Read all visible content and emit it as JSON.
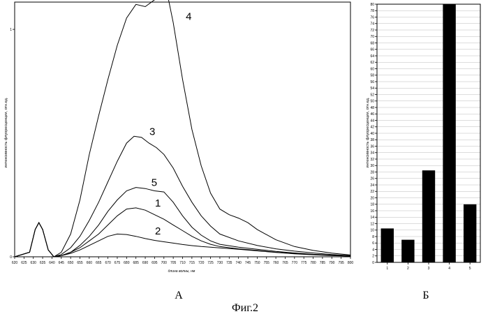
{
  "figure_caption": "Фиг.2",
  "chart_data": [
    {
      "type": "line",
      "panel_label": "А",
      "xlabel": "длина волны, нм",
      "ylabel": "интенсивность флуоресценции, отн.ед.",
      "xlim": [
        620,
        800
      ],
      "ylim": [
        0,
        1.12
      ],
      "x_ticks": [
        620,
        625,
        630,
        635,
        640,
        645,
        650,
        655,
        660,
        665,
        670,
        675,
        680,
        685,
        690,
        695,
        700,
        705,
        710,
        715,
        720,
        725,
        730,
        735,
        740,
        745,
        750,
        755,
        760,
        765,
        770,
        775,
        780,
        785,
        790,
        795,
        800
      ],
      "y_tick_labels": [
        "0",
        "1"
      ],
      "series": [
        {
          "name": "1",
          "points": [
            [
              620,
              0
            ],
            [
              628,
              0.02
            ],
            [
              631,
              0.12
            ],
            [
              633,
              0.15
            ],
            [
              635,
              0.12
            ],
            [
              638,
              0.03
            ],
            [
              641,
              0
            ],
            [
              645,
              0.005
            ],
            [
              650,
              0.02
            ],
            [
              655,
              0.04
            ],
            [
              660,
              0.07
            ],
            [
              665,
              0.1
            ],
            [
              670,
              0.14
            ],
            [
              675,
              0.18
            ],
            [
              680,
              0.21
            ],
            [
              685,
              0.215
            ],
            [
              690,
              0.205
            ],
            [
              695,
              0.185
            ],
            [
              700,
              0.165
            ],
            [
              705,
              0.14
            ],
            [
              710,
              0.115
            ],
            [
              715,
              0.09
            ],
            [
              720,
              0.07
            ],
            [
              725,
              0.055
            ],
            [
              730,
              0.045
            ],
            [
              740,
              0.035
            ],
            [
              750,
              0.028
            ],
            [
              760,
              0.02
            ],
            [
              770,
              0.014
            ],
            [
              780,
              0.01
            ],
            [
              790,
              0.006
            ],
            [
              800,
              0.003
            ]
          ]
        },
        {
          "name": "2",
          "points": [
            [
              620,
              0
            ],
            [
              628,
              0.02
            ],
            [
              631,
              0.12
            ],
            [
              633,
              0.15
            ],
            [
              635,
              0.12
            ],
            [
              638,
              0.03
            ],
            [
              641,
              0
            ],
            [
              645,
              0.005
            ],
            [
              650,
              0.015
            ],
            [
              655,
              0.03
            ],
            [
              660,
              0.05
            ],
            [
              665,
              0.07
            ],
            [
              670,
              0.09
            ],
            [
              675,
              0.1
            ],
            [
              680,
              0.098
            ],
            [
              685,
              0.09
            ],
            [
              690,
              0.08
            ],
            [
              695,
              0.072
            ],
            [
              700,
              0.066
            ],
            [
              705,
              0.06
            ],
            [
              710,
              0.054
            ],
            [
              715,
              0.049
            ],
            [
              720,
              0.045
            ],
            [
              730,
              0.039
            ],
            [
              740,
              0.033
            ],
            [
              750,
              0.026
            ],
            [
              760,
              0.019
            ],
            [
              770,
              0.013
            ],
            [
              780,
              0.009
            ],
            [
              790,
              0.005
            ],
            [
              800,
              0.003
            ]
          ]
        },
        {
          "name": "3",
          "points": [
            [
              620,
              0
            ],
            [
              628,
              0.02
            ],
            [
              631,
              0.12
            ],
            [
              633,
              0.15
            ],
            [
              635,
              0.12
            ],
            [
              638,
              0.03
            ],
            [
              641,
              0
            ],
            [
              645,
              0.01
            ],
            [
              650,
              0.04
            ],
            [
              655,
              0.09
            ],
            [
              660,
              0.16
            ],
            [
              665,
              0.24
            ],
            [
              670,
              0.33
            ],
            [
              675,
              0.42
            ],
            [
              680,
              0.5
            ],
            [
              684,
              0.53
            ],
            [
              688,
              0.525
            ],
            [
              692,
              0.5
            ],
            [
              696,
              0.48
            ],
            [
              700,
              0.45
            ],
            [
              705,
              0.39
            ],
            [
              710,
              0.31
            ],
            [
              715,
              0.24
            ],
            [
              720,
              0.18
            ],
            [
              725,
              0.135
            ],
            [
              730,
              0.1
            ],
            [
              740,
              0.07
            ],
            [
              750,
              0.05
            ],
            [
              760,
              0.035
            ],
            [
              770,
              0.025
            ],
            [
              780,
              0.017
            ],
            [
              790,
              0.01
            ],
            [
              800,
              0.005
            ]
          ]
        },
        {
          "name": "4",
          "points": [
            [
              620,
              0
            ],
            [
              628,
              0.02
            ],
            [
              631,
              0.12
            ],
            [
              633,
              0.15
            ],
            [
              635,
              0.12
            ],
            [
              638,
              0.03
            ],
            [
              641,
              0
            ],
            [
              645,
              0.02
            ],
            [
              650,
              0.1
            ],
            [
              655,
              0.25
            ],
            [
              660,
              0.45
            ],
            [
              665,
              0.62
            ],
            [
              670,
              0.78
            ],
            [
              675,
              0.93
            ],
            [
              680,
              1.05
            ],
            [
              685,
              1.11
            ],
            [
              690,
              1.1
            ],
            [
              695,
              1.13
            ],
            [
              700,
              1.17
            ],
            [
              702,
              1.15
            ],
            [
              705,
              1.03
            ],
            [
              710,
              0.78
            ],
            [
              715,
              0.56
            ],
            [
              720,
              0.4
            ],
            [
              725,
              0.28
            ],
            [
              730,
              0.21
            ],
            [
              735,
              0.185
            ],
            [
              740,
              0.17
            ],
            [
              745,
              0.15
            ],
            [
              750,
              0.12
            ],
            [
              760,
              0.075
            ],
            [
              770,
              0.045
            ],
            [
              780,
              0.028
            ],
            [
              790,
              0.016
            ],
            [
              800,
              0.008
            ]
          ]
        },
        {
          "name": "5",
          "points": [
            [
              620,
              0
            ],
            [
              628,
              0.02
            ],
            [
              631,
              0.12
            ],
            [
              633,
              0.15
            ],
            [
              635,
              0.12
            ],
            [
              638,
              0.03
            ],
            [
              641,
              0
            ],
            [
              645,
              0.005
            ],
            [
              650,
              0.02
            ],
            [
              655,
              0.05
            ],
            [
              660,
              0.09
            ],
            [
              665,
              0.14
            ],
            [
              670,
              0.2
            ],
            [
              675,
              0.25
            ],
            [
              680,
              0.29
            ],
            [
              685,
              0.305
            ],
            [
              690,
              0.3
            ],
            [
              695,
              0.29
            ],
            [
              700,
              0.285
            ],
            [
              705,
              0.24
            ],
            [
              710,
              0.18
            ],
            [
              715,
              0.13
            ],
            [
              720,
              0.095
            ],
            [
              725,
              0.07
            ],
            [
              730,
              0.055
            ],
            [
              740,
              0.042
            ],
            [
              750,
              0.033
            ],
            [
              760,
              0.024
            ],
            [
              770,
              0.017
            ],
            [
              780,
              0.011
            ],
            [
              790,
              0.007
            ],
            [
              800,
              0.003
            ]
          ]
        }
      ]
    },
    {
      "type": "bar",
      "panel_label": "Б",
      "ylabel": "интенсивность флуоресценции, отн.ед.",
      "categories": [
        "1",
        "2",
        "3",
        "4",
        "5"
      ],
      "values": [
        10.5,
        7,
        28.5,
        80.5,
        18
      ],
      "ylim": [
        0,
        80
      ],
      "y_ticks": [
        0,
        2,
        4,
        6,
        8,
        10,
        12,
        14,
        16,
        18,
        20,
        22,
        24,
        26,
        28,
        30,
        32,
        34,
        36,
        38,
        40,
        42,
        44,
        46,
        48,
        50,
        52,
        54,
        56,
        58,
        60,
        62,
        64,
        66,
        68,
        70,
        72,
        74,
        76,
        78,
        80
      ]
    }
  ]
}
